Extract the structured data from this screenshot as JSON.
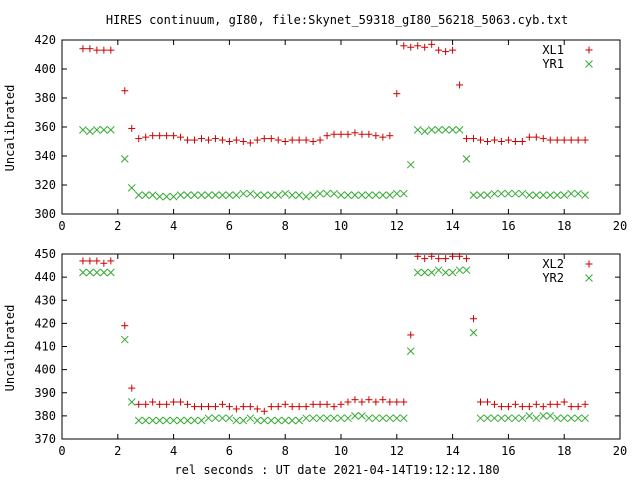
{
  "colors": {
    "xl": "#cc0000",
    "yr": "#33aa33",
    "axis": "#000000"
  },
  "chart_data": [
    {
      "type": "scatter",
      "title": "HIRES continuum, gI80, file:Skynet_59318_gI80_56218_5063.cyb.txt",
      "xlabel": "",
      "ylabel": "Uncalibrated",
      "xlim": [
        0,
        20
      ],
      "ylim": [
        300,
        420
      ],
      "xticks": [
        0,
        2,
        4,
        6,
        8,
        10,
        12,
        14,
        16,
        18,
        20
      ],
      "yticks": [
        300,
        320,
        340,
        360,
        380,
        400,
        420
      ],
      "legend_position": "top-right",
      "series": [
        {
          "name": "XL1",
          "marker": "plus",
          "color": "#cc0000",
          "x": [
            0.75,
            1.0,
            1.25,
            1.5,
            1.75,
            2.25,
            2.5,
            2.75,
            3.0,
            3.25,
            3.5,
            3.75,
            4.0,
            4.25,
            4.5,
            4.75,
            5.0,
            5.25,
            5.5,
            5.75,
            6.0,
            6.25,
            6.5,
            6.75,
            7.0,
            7.25,
            7.5,
            7.75,
            8.0,
            8.25,
            8.5,
            8.75,
            9.0,
            9.25,
            9.5,
            9.75,
            10.0,
            10.25,
            10.5,
            10.75,
            11.0,
            11.25,
            11.5,
            11.75,
            12.0,
            12.25,
            12.5,
            12.75,
            13.0,
            13.25,
            13.5,
            13.75,
            14.0,
            14.25,
            14.5,
            14.75,
            15.0,
            15.25,
            15.5,
            15.75,
            16.0,
            16.25,
            16.5,
            16.75,
            17.0,
            17.25,
            17.5,
            17.75,
            18.0,
            18.25,
            18.5,
            18.75
          ],
          "y": [
            414,
            414,
            413,
            413,
            413,
            385,
            359,
            352,
            353,
            354,
            354,
            354,
            354,
            353,
            351,
            351,
            352,
            351,
            352,
            351,
            350,
            351,
            350,
            349,
            351,
            352,
            352,
            351,
            350,
            351,
            351,
            351,
            350,
            351,
            354,
            355,
            355,
            355,
            356,
            355,
            355,
            354,
            353,
            354,
            383,
            416,
            415,
            416,
            415,
            417,
            413,
            412,
            413,
            389,
            352,
            352,
            351,
            350,
            351,
            350,
            351,
            350,
            350,
            353,
            353,
            352,
            351,
            351,
            351,
            351,
            351,
            351
          ],
          "_note_ignore": null
        },
        {
          "name": "YR1",
          "marker": "cross",
          "color": "#33aa33",
          "x": [
            0.75,
            1.0,
            1.25,
            1.5,
            1.75,
            2.25,
            2.5,
            2.75,
            3.0,
            3.25,
            3.5,
            3.75,
            4.0,
            4.25,
            4.5,
            4.75,
            5.0,
            5.25,
            5.5,
            5.75,
            6.0,
            6.25,
            6.5,
            6.75,
            7.0,
            7.25,
            7.5,
            7.75,
            8.0,
            8.25,
            8.5,
            8.75,
            9.0,
            9.25,
            9.5,
            9.75,
            10.0,
            10.25,
            10.5,
            10.75,
            11.0,
            11.25,
            11.5,
            11.75,
            12.0,
            12.25,
            12.5,
            12.75,
            13.0,
            13.25,
            13.5,
            13.75,
            14.0,
            14.25,
            14.5,
            14.75,
            15.0,
            15.25,
            15.5,
            15.75,
            16.0,
            16.25,
            16.5,
            16.75,
            17.0,
            17.25,
            17.5,
            17.75,
            18.0,
            18.25,
            18.5,
            18.75
          ],
          "y": [
            358,
            357,
            358,
            358,
            358,
            338,
            318,
            313,
            313,
            313,
            312,
            312,
            312,
            313,
            313,
            313,
            313,
            313,
            313,
            313,
            313,
            313,
            314,
            314,
            313,
            313,
            313,
            313,
            314,
            313,
            313,
            312,
            313,
            314,
            314,
            314,
            313,
            313,
            313,
            313,
            313,
            313,
            313,
            313,
            314,
            314,
            334,
            358,
            357,
            358,
            358,
            358,
            358,
            358,
            338,
            313,
            313,
            313,
            314,
            314,
            314,
            314,
            314,
            313,
            313,
            313,
            313,
            313,
            313,
            314,
            314,
            313
          ]
        }
      ]
    },
    {
      "type": "scatter",
      "title": "",
      "xlabel": "rel seconds : UT date 2021-04-14T19:12:12.180",
      "ylabel": "Uncalibrated",
      "xlim": [
        0,
        20
      ],
      "ylim": [
        370,
        450
      ],
      "xticks": [
        0,
        2,
        4,
        6,
        8,
        10,
        12,
        14,
        16,
        18,
        20
      ],
      "yticks": [
        370,
        380,
        390,
        400,
        410,
        420,
        430,
        440,
        450
      ],
      "legend_position": "top-right",
      "series": [
        {
          "name": "XL2",
          "marker": "plus",
          "color": "#cc0000",
          "x": [
            0.75,
            1.0,
            1.25,
            1.5,
            1.75,
            2.25,
            2.5,
            2.75,
            3.0,
            3.25,
            3.5,
            3.75,
            4.0,
            4.25,
            4.5,
            4.75,
            5.0,
            5.25,
            5.5,
            5.75,
            6.0,
            6.25,
            6.5,
            6.75,
            7.0,
            7.25,
            7.5,
            7.75,
            8.0,
            8.25,
            8.5,
            8.75,
            9.0,
            9.25,
            9.5,
            9.75,
            10.0,
            10.25,
            10.5,
            10.75,
            11.0,
            11.25,
            11.5,
            11.75,
            12.0,
            12.25,
            12.5,
            12.75,
            13.0,
            13.25,
            13.5,
            13.75,
            14.0,
            14.25,
            14.5,
            14.75,
            15.0,
            15.25,
            15.5,
            15.75,
            16.0,
            16.25,
            16.5,
            16.75,
            17.0,
            17.25,
            17.5,
            17.75,
            18.0,
            18.25,
            18.5,
            18.75
          ],
          "y": [
            447,
            447,
            447,
            446,
            447,
            419,
            392,
            385,
            385,
            386,
            385,
            385,
            386,
            386,
            385,
            384,
            384,
            384,
            384,
            385,
            384,
            383,
            384,
            384,
            383,
            382,
            384,
            384,
            385,
            384,
            384,
            384,
            385,
            385,
            385,
            384,
            385,
            386,
            387,
            386,
            387,
            386,
            387,
            386,
            386,
            386,
            415,
            449,
            448,
            449,
            448,
            448,
            449,
            449,
            448,
            422,
            386,
            386,
            385,
            384,
            384,
            385,
            384,
            384,
            385,
            384,
            385,
            385,
            386,
            384,
            384,
            385
          ]
        },
        {
          "name": "YR2",
          "marker": "cross",
          "color": "#33aa33",
          "x": [
            0.75,
            1.0,
            1.25,
            1.5,
            1.75,
            2.25,
            2.5,
            2.75,
            3.0,
            3.25,
            3.5,
            3.75,
            4.0,
            4.25,
            4.5,
            4.75,
            5.0,
            5.25,
            5.5,
            5.75,
            6.0,
            6.25,
            6.5,
            6.75,
            7.0,
            7.25,
            7.5,
            7.75,
            8.0,
            8.25,
            8.5,
            8.75,
            9.0,
            9.25,
            9.5,
            9.75,
            10.0,
            10.25,
            10.5,
            10.75,
            11.0,
            11.25,
            11.5,
            11.75,
            12.0,
            12.25,
            12.5,
            12.75,
            13.0,
            13.25,
            13.5,
            13.75,
            14.0,
            14.25,
            14.5,
            14.75,
            15.0,
            15.25,
            15.5,
            15.75,
            16.0,
            16.25,
            16.5,
            16.75,
            17.0,
            17.25,
            17.5,
            17.75,
            18.0,
            18.25,
            18.5,
            18.75
          ],
          "y": [
            442,
            442,
            442,
            442,
            442,
            413,
            386,
            378,
            378,
            378,
            378,
            378,
            378,
            378,
            378,
            378,
            378,
            379,
            379,
            379,
            379,
            378,
            378,
            379,
            378,
            378,
            378,
            378,
            378,
            378,
            378,
            379,
            379,
            379,
            379,
            379,
            379,
            379,
            380,
            380,
            379,
            379,
            379,
            379,
            379,
            379,
            408,
            442,
            442,
            442,
            443,
            442,
            442,
            443,
            443,
            416,
            379,
            379,
            379,
            379,
            379,
            379,
            379,
            380,
            379,
            380,
            380,
            379,
            379,
            379,
            379,
            379
          ]
        }
      ]
    }
  ]
}
